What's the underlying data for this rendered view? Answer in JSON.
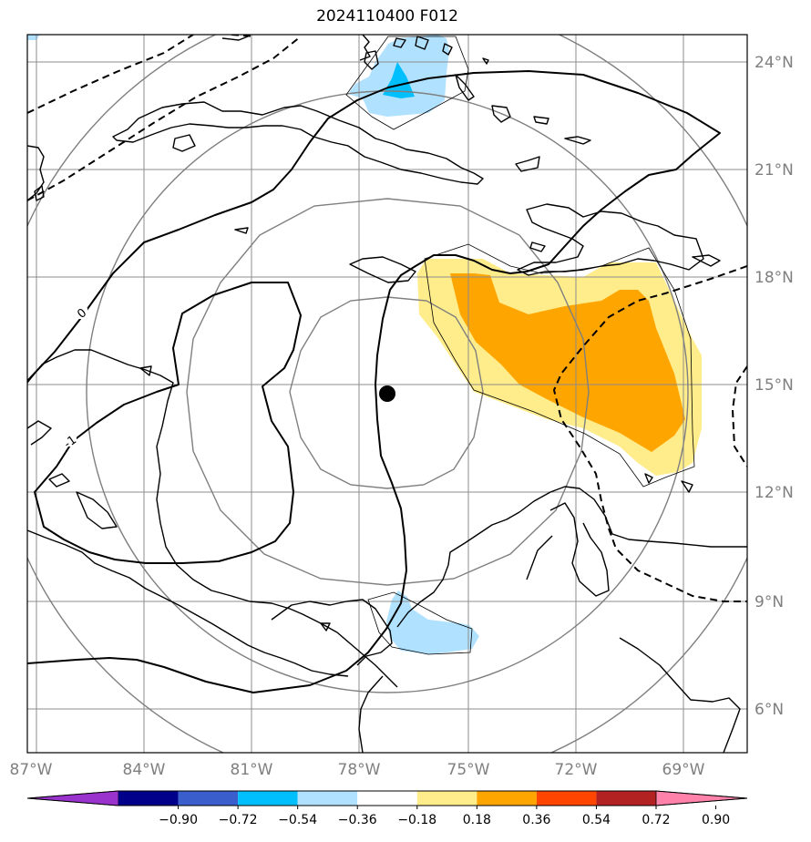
{
  "title": "2024110400 F012",
  "axes": {
    "lon_labels": [
      "87°W",
      "84°W",
      "81°W",
      "78°W",
      "75°W",
      "72°W",
      "69°W"
    ],
    "lat_labels": [
      "24°N",
      "21°N",
      "18°N",
      "15°N",
      "12°N",
      "9°N",
      "6°N"
    ]
  },
  "contour_labels": [
    "0",
    "-1"
  ],
  "colorbar": {
    "colors": [
      "#9a32cd",
      "#00008b",
      "#3a5fcd",
      "#00bfff",
      "#b0e2ff",
      "#ffffff",
      "#ffec8b",
      "#ffa500",
      "#ff4500",
      "#b22222",
      "#ff82ab"
    ],
    "labels": [
      "−0.90",
      "−0.72",
      "−0.54",
      "−0.36",
      "−0.18",
      "0.18",
      "0.36",
      "0.54",
      "0.72",
      "0.90"
    ]
  }
}
